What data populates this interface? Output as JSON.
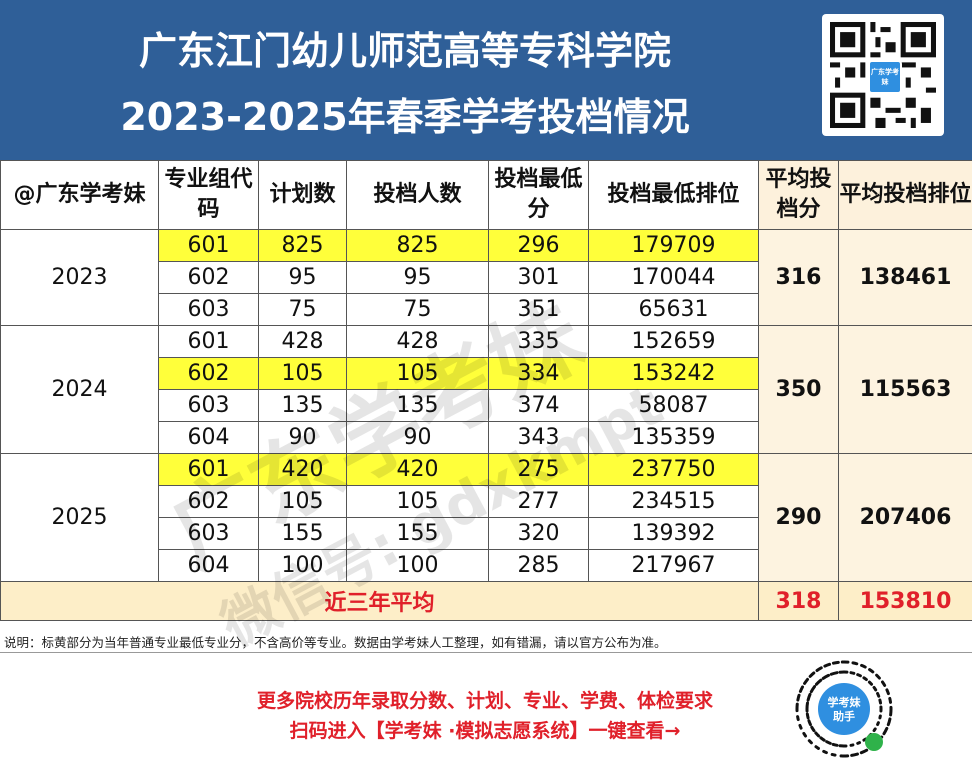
{
  "header": {
    "title_line1": "广东江门幼儿师范高等专科学院",
    "title_line2": "2023-2025年春季学考投档情况",
    "qr_logo_text": "广东学考妹"
  },
  "table": {
    "headers": {
      "source": "@广东学考妹",
      "group_code": "专业组代码",
      "plan": "计划数",
      "admitted": "投档人数",
      "min_score": "投档最低分",
      "min_rank": "投档最低排位",
      "avg_score": "平均投档分",
      "avg_rank": "平均投档排位"
    },
    "years": [
      {
        "year": "2023",
        "avg_score": "316",
        "avg_rank": "138461",
        "rows": [
          {
            "code": "601",
            "plan": "825",
            "admitted": "825",
            "min_score": "296",
            "min_rank": "179709",
            "highlight": true
          },
          {
            "code": "602",
            "plan": "95",
            "admitted": "95",
            "min_score": "301",
            "min_rank": "170044",
            "highlight": false
          },
          {
            "code": "603",
            "plan": "75",
            "admitted": "75",
            "min_score": "351",
            "min_rank": "65631",
            "highlight": false
          }
        ]
      },
      {
        "year": "2024",
        "avg_score": "350",
        "avg_rank": "115563",
        "rows": [
          {
            "code": "601",
            "plan": "428",
            "admitted": "428",
            "min_score": "335",
            "min_rank": "152659",
            "highlight": false
          },
          {
            "code": "602",
            "plan": "105",
            "admitted": "105",
            "min_score": "334",
            "min_rank": "153242",
            "highlight": true
          },
          {
            "code": "603",
            "plan": "135",
            "admitted": "135",
            "min_score": "374",
            "min_rank": "58087",
            "highlight": false
          },
          {
            "code": "604",
            "plan": "90",
            "admitted": "90",
            "min_score": "343",
            "min_rank": "135359",
            "highlight": false
          }
        ]
      },
      {
        "year": "2025",
        "avg_score": "290",
        "avg_rank": "207406",
        "rows": [
          {
            "code": "601",
            "plan": "420",
            "admitted": "420",
            "min_score": "275",
            "min_rank": "237750",
            "highlight": true
          },
          {
            "code": "602",
            "plan": "105",
            "admitted": "105",
            "min_score": "277",
            "min_rank": "234515",
            "highlight": false
          },
          {
            "code": "603",
            "plan": "155",
            "admitted": "155",
            "min_score": "320",
            "min_rank": "139392",
            "highlight": false
          },
          {
            "code": "604",
            "plan": "100",
            "admitted": "100",
            "min_score": "285",
            "min_rank": "217967",
            "highlight": false
          }
        ]
      }
    ],
    "summary": {
      "label": "近三年平均",
      "avg_score": "318",
      "avg_rank": "153810"
    }
  },
  "watermark": {
    "line1": "广东学考妹",
    "line2": "微信号: gdxkmpt"
  },
  "note": "说明：标黄部分为当年普通专业最低专业分，不含高价等专业。数据由学考妹人工整理，如有错漏，请以官方公布为准。",
  "promo": {
    "line1": "更多院校历年录取分数、计划、专业、学费、体检要求",
    "line2": "扫码进入【学考妹 ·模拟志愿系统】一键查看→",
    "mini_qr_text": "学考妹 助手"
  },
  "colors": {
    "header_bg": "#2f5f98",
    "highlight": "#ffff3a",
    "accent_red": "#e0202a"
  }
}
